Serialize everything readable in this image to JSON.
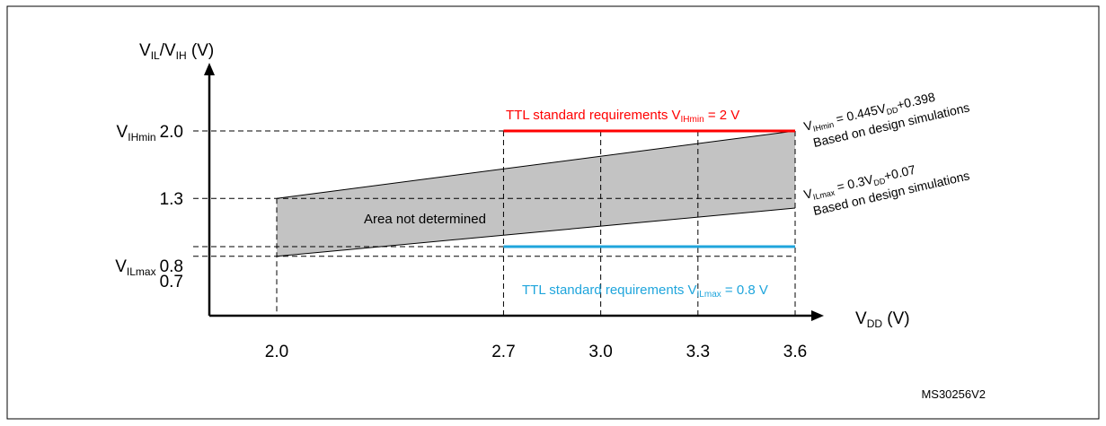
{
  "chart_data": {
    "type": "area",
    "y_axis_label": {
      "main": "V",
      "sub1": "IL",
      "mid": "/V",
      "sub2": "IH",
      "tail": " (V)"
    },
    "x_axis_label": {
      "main": "V",
      "sub": "DD",
      "tail": " (V)"
    },
    "x_ticks": [
      "2.0",
      "2.7",
      "3.0",
      "3.3",
      "3.6"
    ],
    "y_tick_labels": {
      "v_ihmin": {
        "prefix": "V",
        "sub": "IHmin",
        "value": "2.0"
      },
      "v13": "1.3",
      "v_ilmax": {
        "prefix": "V",
        "sub": "ILmax",
        "value": "0.8"
      },
      "v07": "0.7"
    },
    "x": [
      2.0,
      3.6
    ],
    "series": [
      {
        "name": "VIHmin",
        "values": [
          1.3,
          2.0
        ]
      },
      {
        "name": "VILmax",
        "values": [
          0.7,
          1.2
        ]
      }
    ],
    "ttl_levels": [
      {
        "level": 2.0,
        "x_range": [
          2.7,
          3.6
        ],
        "color": "#ff0000"
      },
      {
        "level": 0.8,
        "x_range": [
          2.7,
          3.6
        ],
        "color": "#1fa5dc"
      }
    ],
    "xlim": [
      1.6,
      3.9
    ],
    "ylim": [
      0.2,
      2.9
    ],
    "fill_color": "#c3c3c3",
    "annotations": {
      "area": "Area not determined",
      "ttl_high": {
        "text": "TTL standard  requirements V",
        "sub": "IHmin",
        "tail": " = 2 V"
      },
      "ttl_low": {
        "text": "TTL standard  requirements V",
        "sub": "ILmax",
        "tail": " = 0.8 V"
      },
      "eq_high": {
        "prefix": "V",
        "sub1": "IHmin",
        "mid": " = 0.445V",
        "sub2": "DD",
        "tail": "+0.398",
        "line2": "Based on design simulations"
      },
      "eq_low": {
        "prefix": "V",
        "sub1": "ILmax",
        "mid": " = 0.3V",
        "sub2": "DD",
        "tail": "+0.07",
        "line2": "Based on design  simulations"
      }
    },
    "figure_id": "MS30256V2"
  }
}
